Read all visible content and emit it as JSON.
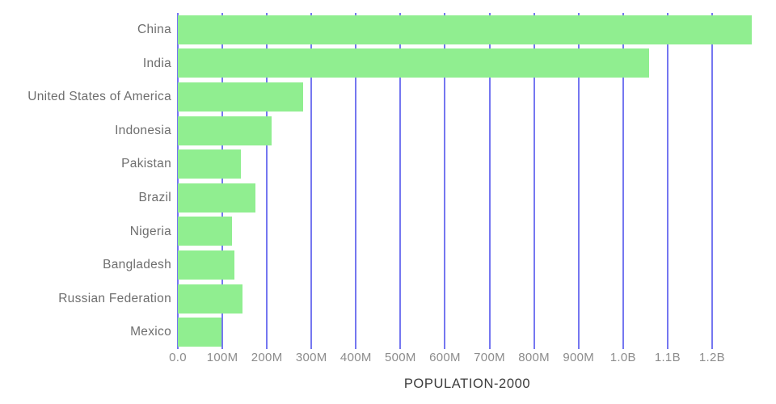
{
  "chart": {
    "bar_color": "#90ee90",
    "gridline_color": "#7577f0",
    "category_label_color": "#6e6e6e",
    "tick_label_color": "#8c8c8c",
    "title_color": "#3d3d3d",
    "background_color": "#ffffff"
  },
  "chart_data": {
    "type": "bar",
    "orientation": "horizontal",
    "title": "",
    "xlabel": "POPULATION-2000",
    "ylabel": "",
    "categories": [
      "China",
      "India",
      "United States of America",
      "Indonesia",
      "Pakistan",
      "Brazil",
      "Nigeria",
      "Bangladesh",
      "Russian Federation",
      "Mexico"
    ],
    "values_millions": [
      1290,
      1058,
      282,
      211,
      141,
      175,
      122,
      128,
      146,
      98
    ],
    "x_ticks": [
      "0.0",
      "100M",
      "200M",
      "300M",
      "400M",
      "500M",
      "600M",
      "700M",
      "800M",
      "900M",
      "1.0B",
      "1.1B",
      "1.2B"
    ],
    "x_tick_values_millions": [
      0,
      100,
      200,
      300,
      400,
      500,
      600,
      700,
      800,
      900,
      1000,
      1100,
      1200
    ],
    "xlim_millions": [
      0,
      1300
    ],
    "grid": true,
    "legend": false
  }
}
